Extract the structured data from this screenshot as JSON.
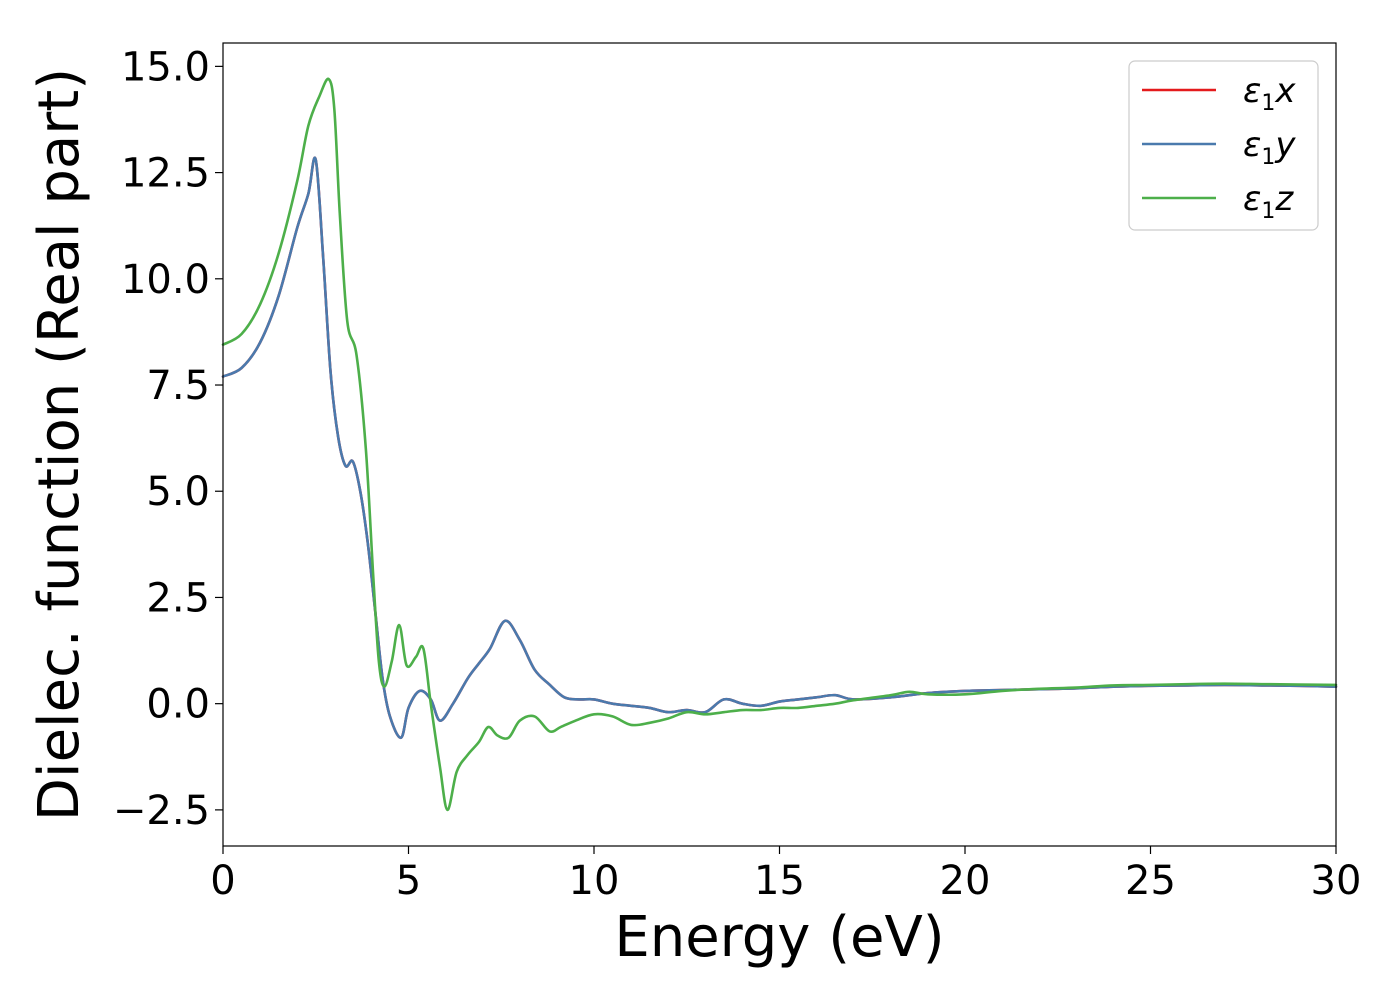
{
  "chart_data": {
    "type": "line",
    "xlabel": "Energy (eV)",
    "ylabel": "Dielec. function (Real part)",
    "xlim": [
      0,
      30
    ],
    "ylim": [
      -3.35,
      15.55
    ],
    "xticks": [
      0,
      5,
      10,
      15,
      20,
      25,
      30
    ],
    "yticks": [
      -2.5,
      0.0,
      2.5,
      5.0,
      7.5,
      10.0,
      12.5,
      15.0
    ],
    "xtick_labels": [
      "0",
      "5",
      "10",
      "15",
      "20",
      "25",
      "30"
    ],
    "ytick_labels": [
      "−2.5",
      "0.0",
      "2.5",
      "5.0",
      "7.5",
      "10.0",
      "12.5",
      "15.0"
    ],
    "grid": false,
    "legend_position": "top-right",
    "series": [
      {
        "name": "ε",
        "subscript": "1",
        "suffix": "x",
        "color": "#e41a1c",
        "x": [
          0,
          0.5,
          1.0,
          1.5,
          2.0,
          2.3,
          2.5,
          2.7,
          2.9,
          3.1,
          3.3,
          3.5,
          3.7,
          3.9,
          4.1,
          4.3,
          4.5,
          4.8,
          5.0,
          5.3,
          5.6,
          5.85,
          6.2,
          6.6,
          6.9,
          7.2,
          7.6,
          8.0,
          8.4,
          8.8,
          9.2,
          9.6,
          10.0,
          10.5,
          11.0,
          11.5,
          12.0,
          12.5,
          13.0,
          13.5,
          14.0,
          14.5,
          15.0,
          15.5,
          16.0,
          16.5,
          17.0,
          18.0,
          19.0,
          20.0,
          21.0,
          22.0,
          23.0,
          24.0,
          25.0,
          26.0,
          27.0,
          28.0,
          29.0,
          30.0
        ],
        "values": [
          7.7,
          7.9,
          8.5,
          9.6,
          11.2,
          12.0,
          12.8,
          10.5,
          7.8,
          6.3,
          5.6,
          5.7,
          5.0,
          3.8,
          2.2,
          0.6,
          -0.3,
          -0.8,
          -0.1,
          0.3,
          0.1,
          -0.4,
          0.0,
          0.6,
          0.95,
          1.3,
          1.95,
          1.5,
          0.8,
          0.45,
          0.15,
          0.1,
          0.1,
          0.0,
          -0.05,
          -0.1,
          -0.2,
          -0.15,
          -0.2,
          0.1,
          0.0,
          -0.05,
          0.05,
          0.1,
          0.15,
          0.2,
          0.1,
          0.15,
          0.25,
          0.3,
          0.32,
          0.34,
          0.36,
          0.4,
          0.42,
          0.43,
          0.44,
          0.43,
          0.42,
          0.4
        ]
      },
      {
        "name": "ε",
        "subscript": "1",
        "suffix": "y",
        "color": "#4a7aad",
        "x": [
          0,
          0.5,
          1.0,
          1.5,
          2.0,
          2.3,
          2.5,
          2.7,
          2.9,
          3.1,
          3.3,
          3.5,
          3.7,
          3.9,
          4.1,
          4.3,
          4.5,
          4.8,
          5.0,
          5.3,
          5.6,
          5.85,
          6.2,
          6.6,
          6.9,
          7.2,
          7.6,
          8.0,
          8.4,
          8.8,
          9.2,
          9.6,
          10.0,
          10.5,
          11.0,
          11.5,
          12.0,
          12.5,
          13.0,
          13.5,
          14.0,
          14.5,
          15.0,
          15.5,
          16.0,
          16.5,
          17.0,
          18.0,
          19.0,
          20.0,
          21.0,
          22.0,
          23.0,
          24.0,
          25.0,
          26.0,
          27.0,
          28.0,
          29.0,
          30.0
        ],
        "values": [
          7.7,
          7.9,
          8.5,
          9.6,
          11.2,
          12.0,
          12.8,
          10.5,
          7.8,
          6.3,
          5.6,
          5.7,
          5.0,
          3.8,
          2.2,
          0.6,
          -0.3,
          -0.8,
          -0.1,
          0.3,
          0.1,
          -0.4,
          0.0,
          0.6,
          0.95,
          1.3,
          1.95,
          1.5,
          0.8,
          0.45,
          0.15,
          0.1,
          0.1,
          0.0,
          -0.05,
          -0.1,
          -0.2,
          -0.15,
          -0.2,
          0.1,
          0.0,
          -0.05,
          0.05,
          0.1,
          0.15,
          0.2,
          0.1,
          0.15,
          0.25,
          0.3,
          0.32,
          0.34,
          0.36,
          0.4,
          0.42,
          0.43,
          0.44,
          0.43,
          0.42,
          0.4
        ]
      },
      {
        "name": "ε",
        "subscript": "1",
        "suffix": "z",
        "color": "#4daf4a",
        "x": [
          0,
          0.5,
          1.0,
          1.5,
          2.0,
          2.3,
          2.6,
          2.85,
          3.0,
          3.15,
          3.35,
          3.6,
          3.85,
          4.05,
          4.2,
          4.35,
          4.55,
          4.75,
          4.95,
          5.2,
          5.4,
          5.6,
          5.85,
          6.05,
          6.3,
          6.6,
          6.9,
          7.15,
          7.4,
          7.7,
          8.0,
          8.4,
          8.8,
          9.1,
          9.5,
          10.0,
          10.5,
          11.0,
          11.5,
          12.0,
          12.5,
          13.0,
          13.5,
          14.0,
          14.5,
          15.0,
          15.5,
          16.0,
          16.5,
          17.0,
          18.0,
          18.5,
          19.0,
          20.0,
          21.0,
          22.0,
          23.0,
          24.0,
          25.0,
          26.0,
          27.0,
          28.0,
          29.0,
          30.0
        ],
        "values": [
          8.45,
          8.7,
          9.4,
          10.6,
          12.3,
          13.6,
          14.3,
          14.7,
          14.0,
          11.5,
          9.0,
          8.2,
          6.0,
          3.0,
          1.0,
          0.4,
          1.0,
          1.85,
          0.9,
          1.1,
          1.3,
          0.0,
          -1.5,
          -2.5,
          -1.6,
          -1.2,
          -0.9,
          -0.55,
          -0.75,
          -0.8,
          -0.4,
          -0.3,
          -0.65,
          -0.55,
          -0.4,
          -0.25,
          -0.3,
          -0.5,
          -0.45,
          -0.35,
          -0.2,
          -0.25,
          -0.2,
          -0.15,
          -0.15,
          -0.1,
          -0.1,
          -0.05,
          0.0,
          0.08,
          0.2,
          0.28,
          0.22,
          0.22,
          0.3,
          0.35,
          0.38,
          0.43,
          0.44,
          0.46,
          0.47,
          0.46,
          0.45,
          0.44
        ]
      }
    ]
  }
}
